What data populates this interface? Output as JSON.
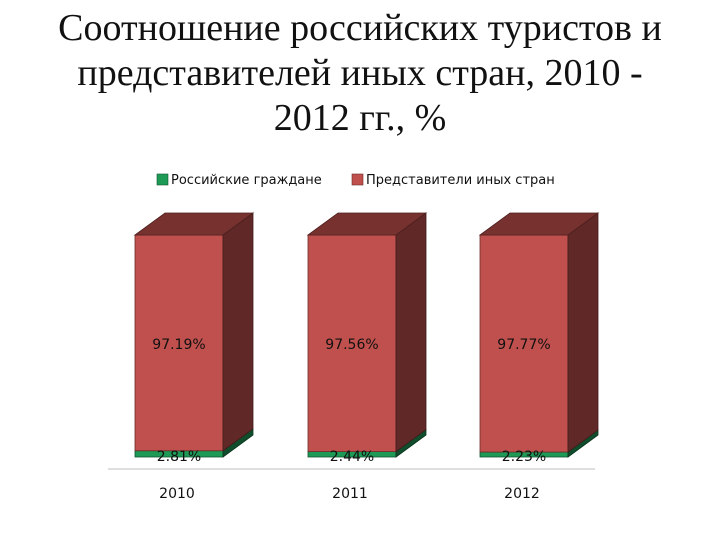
{
  "title_lines": [
    "Соотношение российских туристов и",
    "представителей иных стран, 2010 -",
    "2012 гг., %"
  ],
  "colors": {
    "series_0": "#1e9a57",
    "series_1": "#c0504d",
    "axis": "#bfbfbf",
    "text": "#111111"
  },
  "chart_data": {
    "type": "bar",
    "stacked": true,
    "three_d": true,
    "categories": [
      "2010",
      "2011",
      "2012"
    ],
    "series": [
      {
        "name": "Российские граждане",
        "values": [
          2.81,
          2.44,
          2.23
        ],
        "labels": [
          "2.81%",
          "2.44%",
          "2.23%"
        ]
      },
      {
        "name": "Представители иных стран",
        "values": [
          97.19,
          97.56,
          97.77
        ],
        "labels": [
          "97.19%",
          "97.56%",
          "97.77%"
        ]
      }
    ],
    "ylim": [
      0,
      100
    ],
    "legend_position": "top",
    "grid": false
  }
}
